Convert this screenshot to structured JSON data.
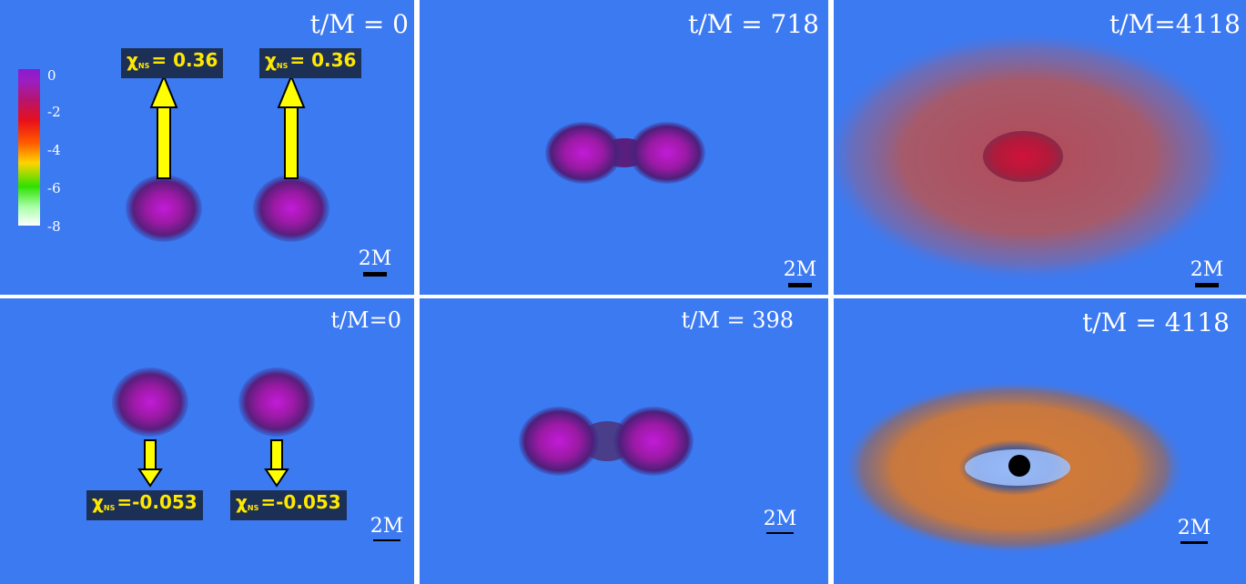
{
  "panels": {
    "p1": {
      "time_label": "t/M = 0",
      "scale_label": "2M",
      "spin_left": "= 0.36",
      "spin_right": "= 0.36",
      "chi_symbol": "χ",
      "chi_sub": "NS"
    },
    "p2": {
      "time_label": "t/M = 718",
      "scale_label": "2M"
    },
    "p3": {
      "time_label": "t/M=4118",
      "scale_label": "2M"
    },
    "p4": {
      "time_label": "t/M=0",
      "scale_label": "2M",
      "spin_left": "=-0.053",
      "spin_right": "=-0.053",
      "chi_symbol": "χ",
      "chi_sub": "NS"
    },
    "p5": {
      "time_label": "t/M = 398",
      "scale_label": "2M"
    },
    "p6": {
      "time_label": "t/M = 4118",
      "scale_label": "2M"
    }
  },
  "colorbar": {
    "ticks": [
      "0",
      "-2",
      "-4",
      "-6",
      "-8"
    ],
    "colors": [
      "#8a1bd0",
      "#e8101a",
      "#ff5a00",
      "#ffd400",
      "#2fe000",
      "#ffffff"
    ]
  },
  "colors": {
    "background": "#3c7af2",
    "star": "#a21aa8",
    "arrow": "#ffff00",
    "spin_box": "#1c2f55"
  }
}
